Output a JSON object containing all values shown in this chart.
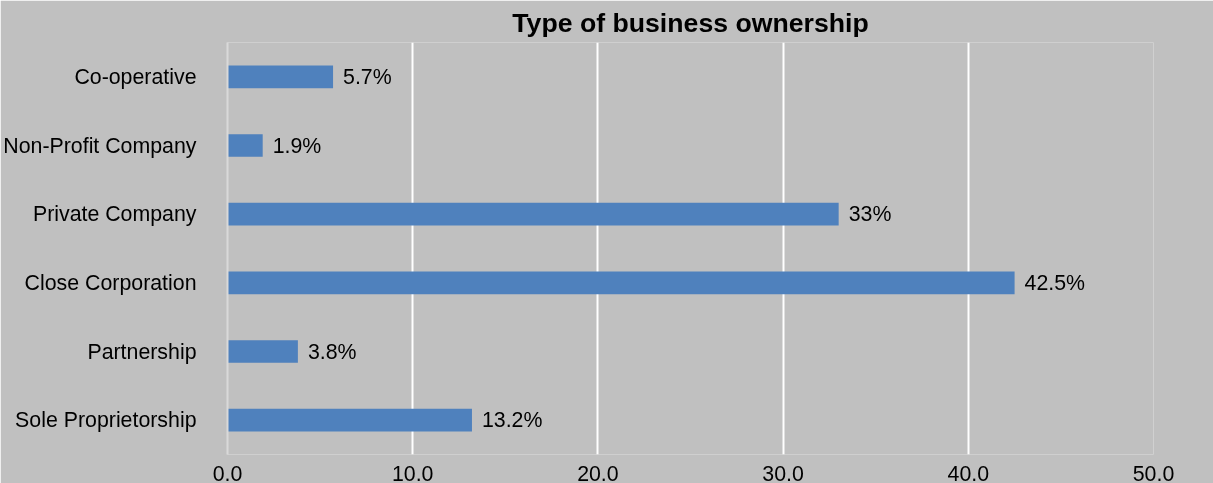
{
  "chart_data": {
    "type": "bar",
    "orientation": "horizontal",
    "title": "Type of business ownership",
    "categories": [
      "Co-operative",
      "Non-Profit Company",
      "Private Company",
      "Close Corporation",
      "Partnership",
      "Sole Proprietorship"
    ],
    "values": [
      5.7,
      1.9,
      33,
      42.5,
      3.8,
      13.2
    ],
    "value_labels": [
      "5.7%",
      "1.9%",
      "33%",
      "42.5%",
      "3.8%",
      "13.2%"
    ],
    "color": "#4f81bd",
    "xlim": [
      0,
      50
    ],
    "xticks": [
      {
        "value": 0,
        "label": "0.0"
      },
      {
        "value": 10,
        "label": "10.0"
      },
      {
        "value": 20,
        "label": "20.0"
      },
      {
        "value": 30,
        "label": "30.0"
      },
      {
        "value": 40,
        "label": "40.0"
      },
      {
        "value": 50,
        "label": "50.0"
      }
    ],
    "grid": "x"
  }
}
